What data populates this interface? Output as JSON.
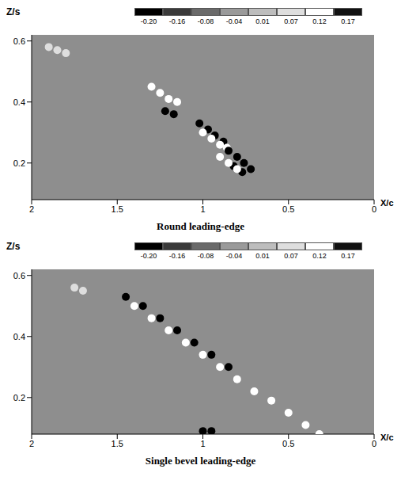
{
  "chart_data": [
    {
      "type": "scatter",
      "title": "Round leading-edge",
      "x_label": "X/c",
      "y_label": "Z/s",
      "xlim": [
        2,
        0
      ],
      "xticks": [
        2,
        1.5,
        1,
        0.5,
        0
      ],
      "ylim": [
        0.08,
        0.62
      ],
      "yticks": [
        0.2,
        0.4,
        0.6
      ],
      "colorbar": {
        "range": [
          -0.2,
          0.17
        ],
        "ticks": [
          {
            "value": -0.2,
            "label": "-0.20"
          },
          -0.16,
          -0.08,
          -0.04,
          0.01,
          0.07,
          0.12,
          0.17
        ]
      },
      "cells": {
        "x": [
          1.3,
          1.25,
          1.2,
          1.15,
          1.22,
          1.17,
          1.02,
          0.97,
          0.93,
          0.88,
          1.0,
          0.95,
          0.9,
          0.86,
          0.85,
          0.8,
          0.76,
          0.72,
          0.82,
          0.77,
          0.9,
          0.85,
          0.8,
          1.9,
          1.85,
          1.8
        ],
        "z": [
          0.45,
          0.43,
          0.41,
          0.4,
          0.37,
          0.36,
          0.33,
          0.31,
          0.29,
          0.27,
          0.3,
          0.28,
          0.26,
          0.25,
          0.24,
          0.22,
          0.2,
          0.18,
          0.19,
          0.17,
          0.22,
          0.2,
          0.18,
          0.58,
          0.57,
          0.56
        ],
        "values": [
          0.12,
          0.12,
          0.12,
          0.12,
          -0.2,
          -0.2,
          -0.2,
          -0.2,
          -0.2,
          -0.2,
          0.12,
          0.12,
          0.12,
          0.12,
          -0.2,
          -0.2,
          -0.2,
          -0.2,
          -0.2,
          -0.2,
          0.12,
          0.12,
          0.12,
          0.07,
          0.07,
          0.07
        ]
      }
    },
    {
      "type": "scatter",
      "title": "Single bevel leading-edge",
      "x_label": "X/c",
      "y_label": "Z/s",
      "xlim": [
        2,
        0
      ],
      "xticks": [
        2,
        1.5,
        1,
        0.5,
        0
      ],
      "ylim": [
        0.08,
        0.62
      ],
      "yticks": [
        0.2,
        0.4,
        0.6
      ],
      "colorbar": {
        "range": [
          -0.2,
          0.17
        ],
        "ticks": [
          {
            "value": -0.2,
            "label": "-0.20"
          },
          -0.16,
          -0.08,
          -0.04,
          0.01,
          0.07,
          0.12,
          0.17
        ]
      },
      "cells": {
        "x": [
          1.45,
          1.35,
          1.25,
          1.15,
          1.05,
          0.95,
          0.85,
          1.4,
          1.3,
          1.2,
          1.1,
          1.0,
          0.9,
          0.8,
          0.7,
          0.6,
          0.5,
          0.4,
          0.32,
          1.75,
          1.7,
          1.0,
          0.95
        ],
        "z": [
          0.53,
          0.5,
          0.46,
          0.42,
          0.38,
          0.34,
          0.3,
          0.5,
          0.46,
          0.42,
          0.38,
          0.34,
          0.3,
          0.26,
          0.22,
          0.19,
          0.15,
          0.11,
          0.08,
          0.56,
          0.55,
          0.09,
          0.09
        ],
        "values": [
          -0.2,
          -0.2,
          -0.2,
          -0.2,
          -0.2,
          -0.2,
          -0.2,
          0.12,
          0.12,
          0.12,
          0.12,
          0.12,
          0.12,
          0.12,
          0.12,
          0.12,
          0.12,
          0.12,
          0.12,
          0.07,
          0.07,
          -0.2,
          -0.2
        ]
      }
    }
  ]
}
